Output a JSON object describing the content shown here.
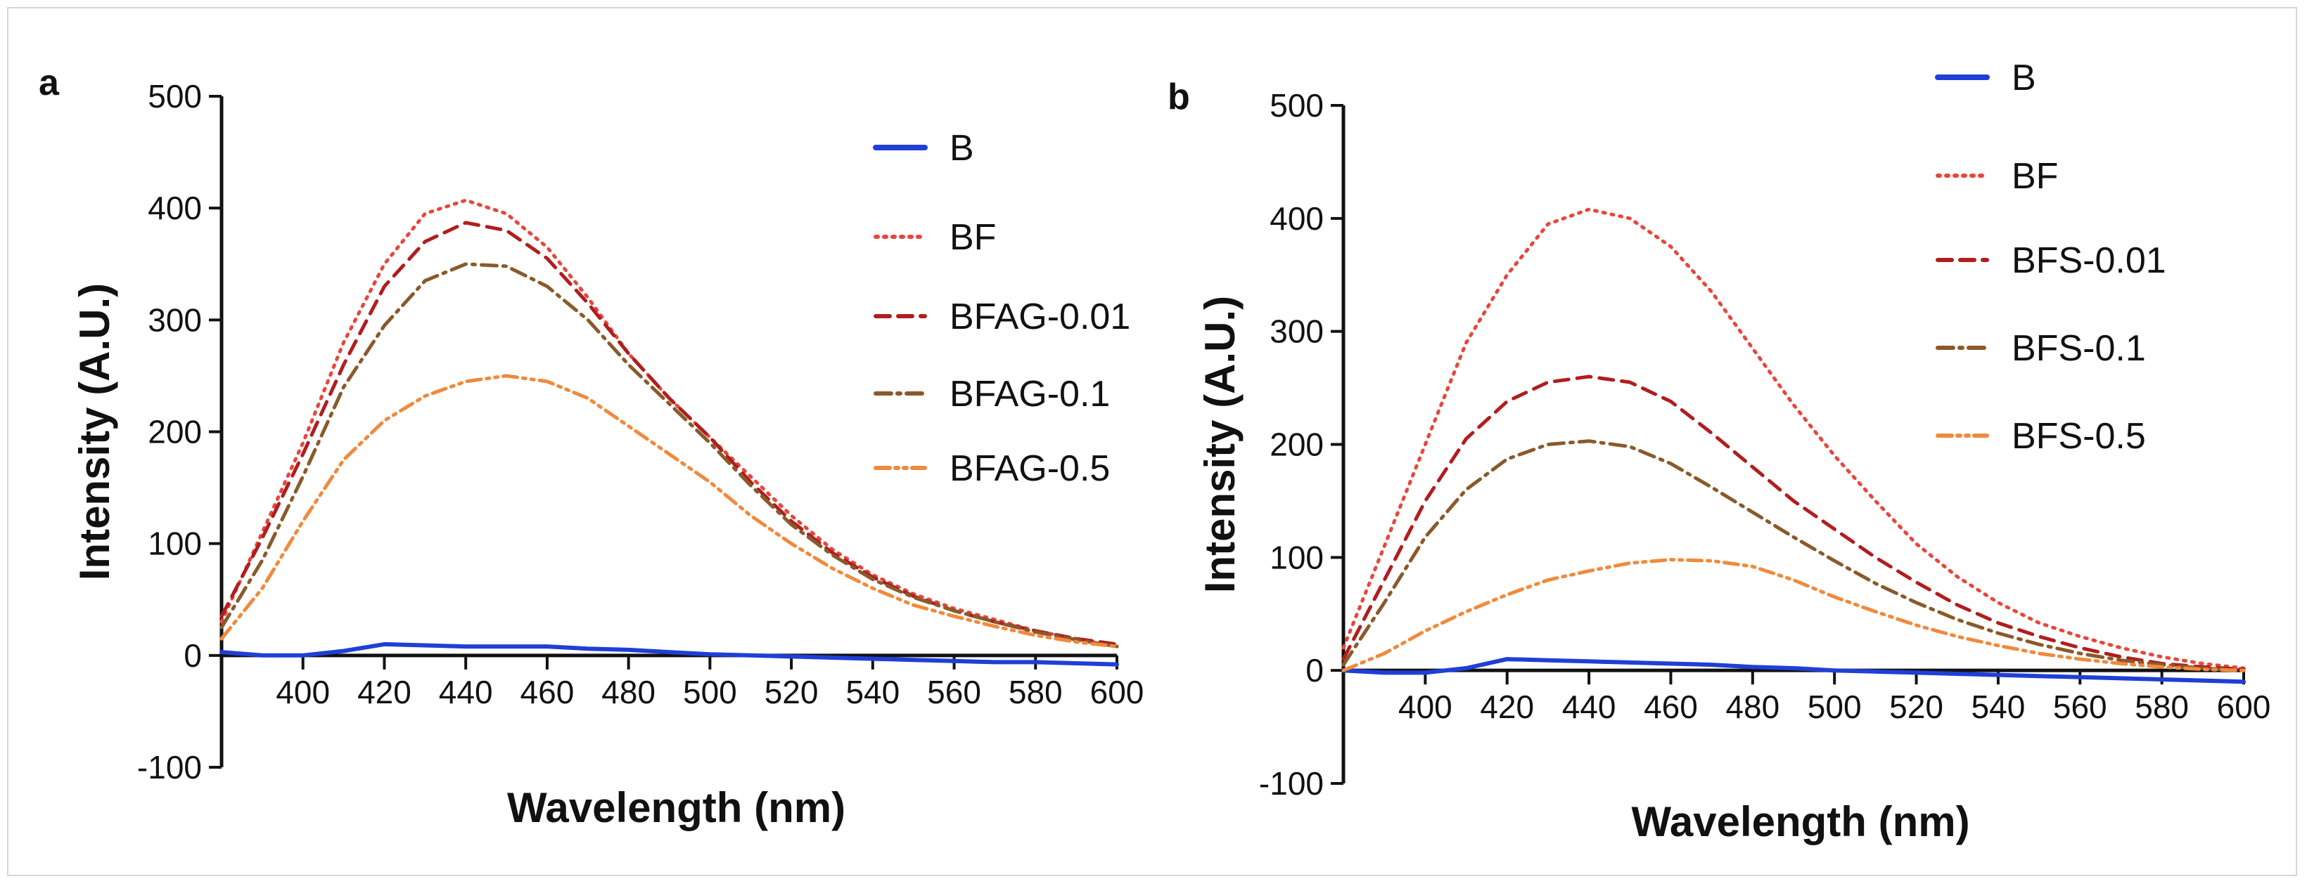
{
  "chart_data": [
    {
      "panel": "a",
      "type": "line",
      "xlabel": "Wavelength (nm)",
      "ylabel": "Intensity (A.U.)",
      "xlim": [
        380,
        600
      ],
      "ylim": [
        -100,
        500
      ],
      "xticks": [
        400,
        420,
        440,
        460,
        480,
        500,
        520,
        540,
        560,
        580,
        600
      ],
      "yticks": [
        -100,
        0,
        100,
        200,
        300,
        400,
        500
      ],
      "x": [
        380,
        390,
        400,
        410,
        420,
        430,
        440,
        450,
        460,
        470,
        480,
        490,
        500,
        510,
        520,
        530,
        540,
        550,
        560,
        570,
        580,
        590,
        600
      ],
      "series": [
        {
          "name": "B",
          "color": "#1f3fd6",
          "style": "solid",
          "values": [
            3,
            0,
            0,
            4,
            10,
            9,
            8,
            8,
            8,
            6,
            5,
            3,
            1,
            0,
            -1,
            -2,
            -3,
            -4,
            -5,
            -6,
            -6,
            -7,
            -8
          ]
        },
        {
          "name": "BF",
          "color": "#e8463c",
          "style": "dotted",
          "values": [
            30,
            110,
            190,
            280,
            350,
            395,
            407,
            395,
            365,
            320,
            270,
            230,
            195,
            160,
            125,
            95,
            72,
            55,
            42,
            32,
            22,
            15,
            8
          ]
        },
        {
          "name": "BFAG-0.01",
          "color": "#b01e1e",
          "style": "dash",
          "values": [
            35,
            105,
            180,
            260,
            330,
            370,
            387,
            380,
            355,
            315,
            270,
            230,
            195,
            155,
            120,
            92,
            70,
            53,
            40,
            30,
            22,
            15,
            10
          ]
        },
        {
          "name": "BFAG-0.1",
          "color": "#8a5a2b",
          "style": "dashdot",
          "values": [
            25,
            85,
            160,
            240,
            295,
            335,
            350,
            348,
            330,
            300,
            260,
            225,
            190,
            152,
            117,
            90,
            68,
            52,
            40,
            30,
            21,
            14,
            8
          ]
        },
        {
          "name": "BFAG-0.5",
          "color": "#f08a3c",
          "style": "dashdotdot",
          "values": [
            15,
            60,
            120,
            175,
            210,
            232,
            245,
            250,
            245,
            230,
            205,
            180,
            155,
            125,
            100,
            78,
            60,
            45,
            35,
            26,
            18,
            12,
            8
          ]
        }
      ]
    },
    {
      "panel": "b",
      "type": "line",
      "xlabel": "Wavelength (nm)",
      "ylabel": "Intensity (A.U.)",
      "xlim": [
        380,
        600
      ],
      "ylim": [
        -100,
        500
      ],
      "xticks": [
        400,
        420,
        440,
        460,
        480,
        500,
        520,
        540,
        560,
        580,
        600
      ],
      "yticks": [
        -100,
        0,
        100,
        200,
        300,
        400,
        500
      ],
      "x": [
        380,
        390,
        400,
        410,
        420,
        430,
        440,
        450,
        460,
        470,
        480,
        490,
        500,
        510,
        520,
        530,
        540,
        550,
        560,
        570,
        580,
        590,
        600
      ],
      "series": [
        {
          "name": "B",
          "color": "#1f3fd6",
          "style": "solid",
          "values": [
            0,
            -2,
            -2,
            2,
            10,
            9,
            8,
            7,
            6,
            5,
            3,
            2,
            0,
            -1,
            -2,
            -3,
            -4,
            -5,
            -6,
            -7,
            -8,
            -9,
            -10
          ]
        },
        {
          "name": "BF",
          "color": "#e8463c",
          "style": "dotted",
          "values": [
            20,
            110,
            200,
            290,
            350,
            395,
            408,
            400,
            375,
            335,
            285,
            235,
            190,
            150,
            112,
            83,
            60,
            42,
            30,
            20,
            12,
            6,
            2
          ]
        },
        {
          "name": "BFS-0.01",
          "color": "#b01e1e",
          "style": "dash",
          "values": [
            10,
            80,
            150,
            205,
            238,
            255,
            260,
            255,
            238,
            210,
            180,
            150,
            125,
            100,
            78,
            58,
            42,
            30,
            20,
            12,
            6,
            3,
            1
          ]
        },
        {
          "name": "BFS-0.1",
          "color": "#8a5a2b",
          "style": "dashdot",
          "values": [
            5,
            60,
            118,
            160,
            187,
            200,
            203,
            198,
            183,
            162,
            140,
            118,
            97,
            77,
            60,
            45,
            33,
            23,
            15,
            9,
            5,
            2,
            0
          ]
        },
        {
          "name": "BFS-0.5",
          "color": "#f08a3c",
          "style": "dashdotdot",
          "values": [
            0,
            15,
            35,
            52,
            67,
            80,
            88,
            95,
            98,
            97,
            92,
            80,
            65,
            52,
            40,
            30,
            22,
            15,
            10,
            6,
            3,
            1,
            0
          ]
        }
      ]
    }
  ]
}
